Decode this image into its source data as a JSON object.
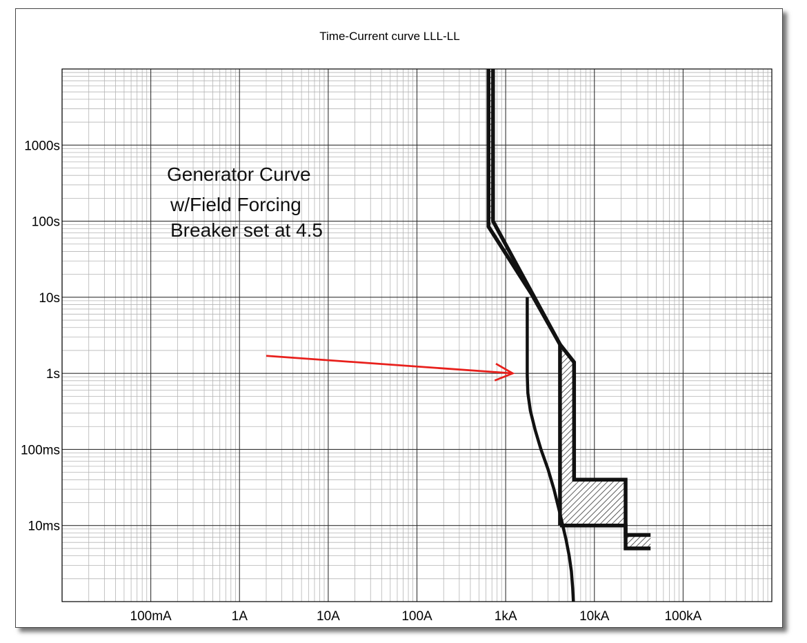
{
  "chart_data": {
    "type": "line",
    "title": "Time-Current curve LLL-LL",
    "xlabel": "",
    "ylabel": "",
    "x_scale": "log",
    "y_scale": "log",
    "grid": true,
    "xlim": [
      0.01,
      1000000
    ],
    "ylim": [
      0.001,
      10000
    ],
    "x_ticks": [
      {
        "value": 0.1,
        "label": "100mA"
      },
      {
        "value": 1,
        "label": "1A"
      },
      {
        "value": 10,
        "label": "10A"
      },
      {
        "value": 100,
        "label": "100A"
      },
      {
        "value": 1000,
        "label": "1kA"
      },
      {
        "value": 10000,
        "label": "10kA"
      },
      {
        "value": 100000,
        "label": "100kA"
      }
    ],
    "y_ticks": [
      {
        "value": 1000,
        "label": "1000s"
      },
      {
        "value": 100,
        "label": "100s"
      },
      {
        "value": 10,
        "label": "10s"
      },
      {
        "value": 1,
        "label": "1s"
      },
      {
        "value": 0.1,
        "label": "100ms"
      },
      {
        "value": 0.01,
        "label": "10ms"
      }
    ],
    "annotation": {
      "lines": [
        "Generator Curve",
        "w/Field Forcing",
        "Breaker set at 4.5"
      ],
      "arrow_color": "#e8201c",
      "arrow_from": [
        2,
        1.7
      ],
      "arrow_to": [
        1200,
        1.0
      ]
    },
    "series": [
      {
        "style": "thick-line",
        "x": [
          640,
          640,
          1960,
          4100,
          4100
        ],
        "y": [
          10000,
          85,
          11,
          2.4,
          0.01
        ]
      },
      {
        "style": "thick-line",
        "x": [
          720,
          720,
          4100
        ],
        "y": [
          10000,
          100,
          2.4
        ]
      },
      {
        "style": "thick-line",
        "x": [
          4100,
          5900,
          5900,
          22500,
          22500,
          43000
        ],
        "y": [
          2.4,
          1.4,
          0.04,
          0.04,
          0.0075,
          0.0075
        ]
      },
      {
        "style": "thick-line",
        "x": [
          4100,
          22500,
          22500,
          43000
        ],
        "y": [
          0.01,
          0.01,
          0.005,
          0.005
        ]
      },
      {
        "style": "curve",
        "x": [
          1750,
          1750,
          1780,
          1900,
          2150,
          2500,
          3000,
          3500,
          4000,
          4400,
          4800,
          5200,
          5500,
          5700,
          5800
        ],
        "y": [
          10,
          0.95,
          0.55,
          0.32,
          0.18,
          0.1,
          0.055,
          0.03,
          0.016,
          0.01,
          0.0065,
          0.004,
          0.0025,
          0.0015,
          0.001
        ]
      }
    ]
  }
}
